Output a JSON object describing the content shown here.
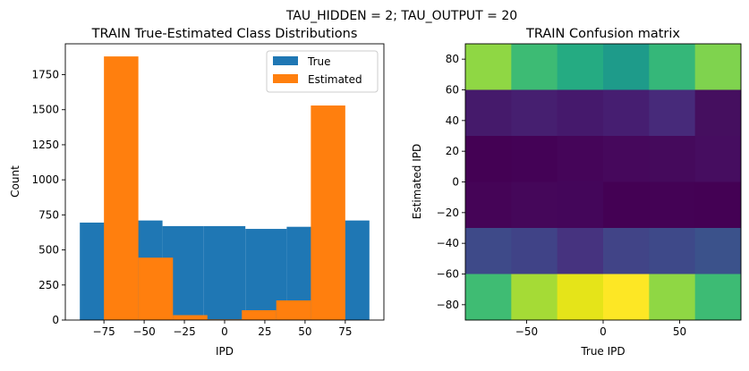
{
  "suptitle": "TAU_HIDDEN = 2; TAU_OUTPUT = 20",
  "colors": {
    "true": "#1f77b4",
    "estimated": "#ff7f0e",
    "axis": "#000000"
  },
  "chart_data": [
    {
      "type": "bar",
      "title": "TRAIN True-Estimated Class Distributions",
      "xlabel": "IPD",
      "ylabel": "Count",
      "xlim": [
        -99,
        99
      ],
      "ylim": [
        0,
        1970
      ],
      "x_ticks": [
        -75,
        -50,
        -25,
        0,
        25,
        50,
        75
      ],
      "y_ticks": [
        0,
        250,
        500,
        750,
        1000,
        1250,
        1500,
        1750
      ],
      "legend_position": "upper right",
      "series": [
        {
          "name": "True",
          "color": "#1f77b4",
          "bins": [
            {
              "x0": -90,
              "x1": -64.3,
              "value": 695
            },
            {
              "x0": -64.3,
              "x1": -38.6,
              "value": 710
            },
            {
              "x0": -38.6,
              "x1": -12.9,
              "value": 670
            },
            {
              "x0": -12.9,
              "x1": 12.9,
              "value": 670
            },
            {
              "x0": 12.9,
              "x1": 38.6,
              "value": 650
            },
            {
              "x0": 38.6,
              "x1": 64.3,
              "value": 665
            },
            {
              "x0": 64.3,
              "x1": 90,
              "value": 710
            }
          ]
        },
        {
          "name": "Estimated",
          "color": "#ff7f0e",
          "bins": [
            {
              "x0": -75,
              "x1": -53.6,
              "value": 1880
            },
            {
              "x0": -53.6,
              "x1": -32.1,
              "value": 445
            },
            {
              "x0": -32.1,
              "x1": -10.7,
              "value": 35
            },
            {
              "x0": -10.7,
              "x1": 10.7,
              "value": 5
            },
            {
              "x0": 10.7,
              "x1": 32.1,
              "value": 70
            },
            {
              "x0": 32.1,
              "x1": 53.6,
              "value": 140
            },
            {
              "x0": 53.6,
              "x1": 75,
              "value": 1530
            }
          ]
        }
      ]
    },
    {
      "type": "heatmap",
      "title": "TRAIN Confusion matrix",
      "xlabel": "True IPD",
      "ylabel": "Estimated IPD",
      "xlim": [
        -90,
        90
      ],
      "ylim": [
        -90,
        90
      ],
      "x_ticks": [
        -50,
        0,
        50
      ],
      "y_ticks": [
        -80,
        -60,
        -40,
        -20,
        0,
        20,
        40,
        60,
        80
      ],
      "x_edges": [
        -90,
        -60,
        -30,
        0,
        30,
        60,
        90
      ],
      "y_edges": [
        -90,
        -60,
        -30,
        0,
        30,
        60,
        90
      ],
      "rows_top_to_bottom": [
        [
          "#8fd744",
          "#3dbb74",
          "#25ab82",
          "#1e9b8a",
          "#35b779",
          "#7fd34e"
        ],
        [
          "#451a6b",
          "#461f70",
          "#45196c",
          "#461e71",
          "#472a7a",
          "#450f5f"
        ],
        [
          "#440154",
          "#440256",
          "#450559",
          "#46085c",
          "#450a5c",
          "#460d60"
        ],
        [
          "#450457",
          "#45075a",
          "#44065a",
          "#440154",
          "#440255",
          "#440154"
        ],
        [
          "#3e4a89",
          "#404387",
          "#46337f",
          "#414487",
          "#3e4989",
          "#3b528b"
        ],
        [
          "#3fbc73",
          "#a5db36",
          "#e5e419",
          "#fde725",
          "#8fd744",
          "#3dbb74"
        ]
      ]
    }
  ]
}
